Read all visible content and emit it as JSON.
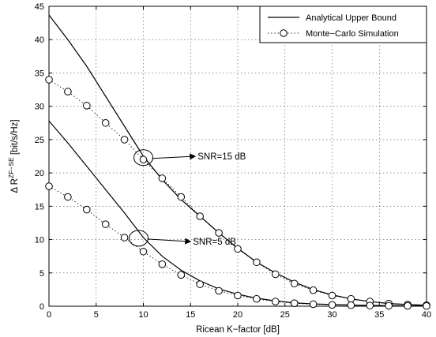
{
  "chart_data": {
    "type": "line",
    "xlabel": "Ricean K−factor [dB]",
    "ylabel_base": "Δ R",
    "ylabel_sup": "ZF−SE",
    "ylabel_unit": " [bit/s/Hz]",
    "xlim": [
      0,
      40
    ],
    "ylim": [
      0,
      45
    ],
    "x_ticks": [
      0,
      5,
      10,
      15,
      20,
      25,
      30,
      35,
      40
    ],
    "y_ticks": [
      0,
      5,
      10,
      15,
      20,
      25,
      30,
      35,
      40,
      45
    ],
    "grid": true,
    "legend_position": "top-right",
    "legend": [
      {
        "label": "Analytical Upper Bound",
        "style": "solid"
      },
      {
        "label": "Monte−Carlo Simulation",
        "style": "dotted-circle"
      }
    ],
    "series": [
      {
        "group": "SNR=15 dB",
        "kind": "analytical",
        "x": [
          0,
          2,
          4,
          6,
          8,
          10,
          12,
          14,
          16,
          18,
          20,
          22,
          24,
          26,
          28,
          30,
          32,
          34,
          36,
          38,
          40
        ],
        "values": [
          43.7,
          40.0,
          36.0,
          31.5,
          27.0,
          22.5,
          19.0,
          16.0,
          13.5,
          11.0,
          8.7,
          6.6,
          5.0,
          3.6,
          2.5,
          1.7,
          1.1,
          0.7,
          0.4,
          0.25,
          0.15
        ]
      },
      {
        "group": "SNR=15 dB",
        "kind": "simulation",
        "x": [
          0,
          2,
          4,
          6,
          8,
          10,
          12,
          14,
          16,
          18,
          20,
          22,
          24,
          26,
          28,
          30,
          32,
          34,
          36,
          38,
          40
        ],
        "values": [
          34.0,
          32.2,
          30.1,
          27.5,
          25.0,
          22.0,
          19.2,
          16.4,
          13.5,
          11.0,
          8.6,
          6.6,
          4.8,
          3.4,
          2.4,
          1.6,
          1.1,
          0.7,
          0.4,
          0.25,
          0.15
        ]
      },
      {
        "group": "SNR=5 dB",
        "kind": "analytical",
        "x": [
          0,
          2,
          4,
          6,
          8,
          10,
          12,
          14,
          16,
          18,
          20,
          22,
          24,
          26,
          28,
          30,
          32,
          34,
          36,
          38,
          40
        ],
        "values": [
          27.8,
          24.5,
          21.0,
          17.5,
          14.0,
          10.3,
          7.5,
          5.4,
          3.8,
          2.6,
          1.8,
          1.2,
          0.8,
          0.5,
          0.35,
          0.25,
          0.18,
          0.12,
          0.08,
          0.05,
          0.03
        ]
      },
      {
        "group": "SNR=5 dB",
        "kind": "simulation",
        "x": [
          0,
          2,
          4,
          6,
          8,
          10,
          12,
          14,
          16,
          18,
          20,
          22,
          24,
          26,
          28,
          30,
          32,
          34,
          36,
          38,
          40
        ],
        "values": [
          18.0,
          16.4,
          14.5,
          12.3,
          10.3,
          8.2,
          6.3,
          4.7,
          3.3,
          2.3,
          1.6,
          1.1,
          0.7,
          0.45,
          0.3,
          0.2,
          0.15,
          0.1,
          0.07,
          0.05,
          0.03
        ]
      }
    ],
    "annotations": [
      {
        "text": "SNR=15 dB",
        "ellipse_center": [
          10,
          22.3
        ],
        "arrow_tip": [
          15.5,
          22.5
        ]
      },
      {
        "text": "SNR=5 dB",
        "ellipse_center": [
          9.5,
          10.2
        ],
        "arrow_tip": [
          15,
          9.7
        ]
      }
    ]
  }
}
